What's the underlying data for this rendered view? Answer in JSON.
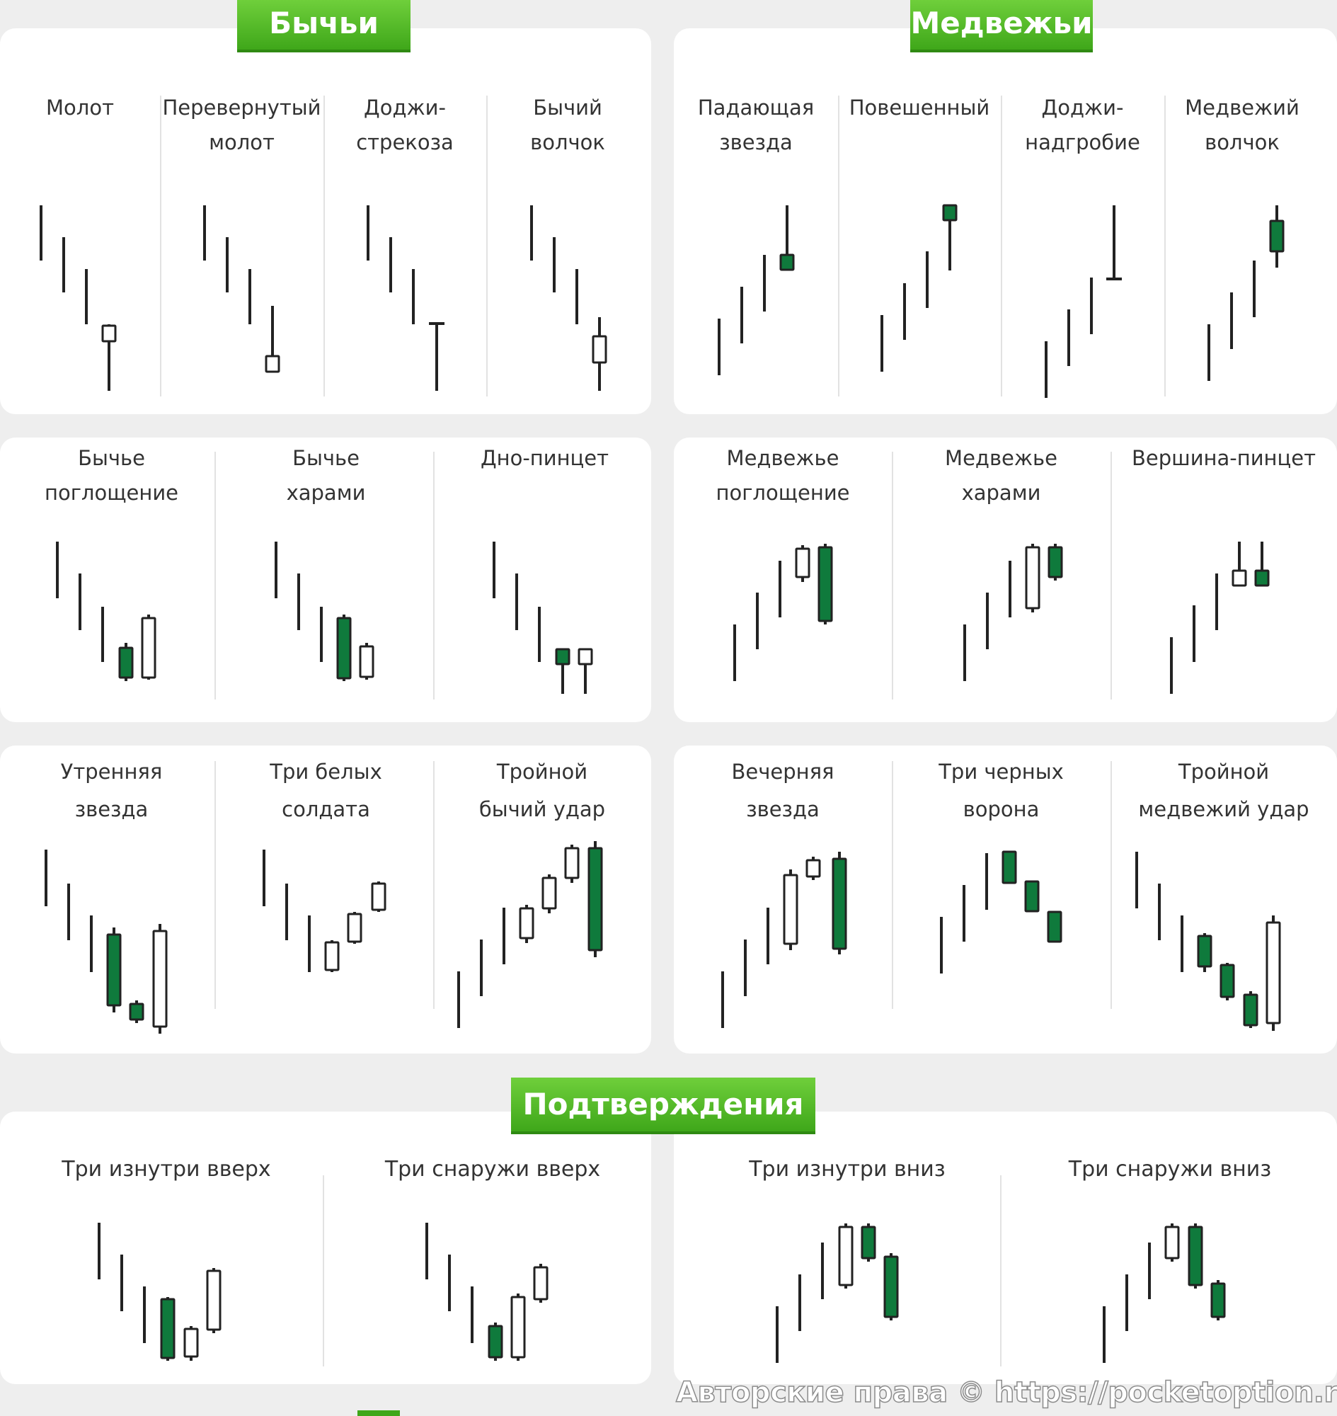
{
  "banners": {
    "bullish": "Бычьи",
    "bearish": "Медвежьи",
    "confirmations": "Подтверждения"
  },
  "colors": {
    "bull_fill": "#ffffff",
    "bear_fill": "#0f7a3c",
    "wick": "#222222",
    "banner_green": "#4cb324"
  },
  "bullish_row1": [
    {
      "line1": "Молот",
      "line2": ""
    },
    {
      "line1": "Перевернутый",
      "line2": "молот"
    },
    {
      "line1": "Доджи-",
      "line2": "стрекоза"
    },
    {
      "line1": "Бычий",
      "line2": "волчок"
    }
  ],
  "bearish_row1": [
    {
      "line1": "Падающая",
      "line2": "звезда"
    },
    {
      "line1": "Повешенный",
      "line2": ""
    },
    {
      "line1": "Доджи-",
      "line2": "надгробие"
    },
    {
      "line1": "Медвежий",
      "line2": "волчок"
    }
  ],
  "bullish_row2": [
    {
      "line1": "Бычье",
      "line2": "поглощение"
    },
    {
      "line1": "Бычье",
      "line2": "харами"
    },
    {
      "line1": "Дно-пинцет",
      "line2": ""
    }
  ],
  "bearish_row2": [
    {
      "line1": "Медвежье",
      "line2": "поглощение"
    },
    {
      "line1": "Медвежье",
      "line2": "харами"
    },
    {
      "line1": "Вершина-пинцет",
      "line2": ""
    }
  ],
  "bullish_row3": [
    {
      "line1": "Утренняя",
      "line2": "звезда"
    },
    {
      "line1": "Три белых",
      "line2": "солдата"
    },
    {
      "line1": "Тройной",
      "line2": "бычий удар"
    }
  ],
  "bearish_row3": [
    {
      "line1": "Вечерняя",
      "line2": "звезда"
    },
    {
      "line1": "Три черных",
      "line2": "ворона"
    },
    {
      "line1": "Тройной",
      "line2": "медвежий удар"
    }
  ],
  "confirmations": [
    {
      "line1": "Три изнутри вверх"
    },
    {
      "line1": "Три снаружи вверх"
    },
    {
      "line1": "Три изнутри вниз"
    },
    {
      "line1": "Три снаружи вниз"
    }
  ],
  "watermark": "Авторские права © https://pocketoption.ru"
}
